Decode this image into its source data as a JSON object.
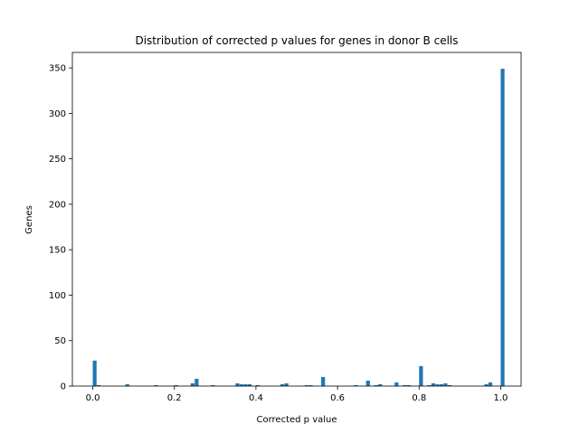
{
  "chart_data": {
    "type": "bar",
    "title": "Distribution of corrected p values for genes in donor B cells",
    "xlabel": "Corrected p value",
    "ylabel": "Genes",
    "xlim": [
      -0.05,
      1.05
    ],
    "ylim": [
      0,
      367
    ],
    "xticks": [
      0.0,
      0.2,
      0.4,
      0.6,
      0.8,
      1.0
    ],
    "xtick_labels": [
      "0.0",
      "0.2",
      "0.4",
      "0.6",
      "0.8",
      "1.0"
    ],
    "yticks": [
      0,
      50,
      100,
      150,
      200,
      250,
      300,
      350
    ],
    "ytick_labels": [
      "0",
      "50",
      "100",
      "150",
      "200",
      "250",
      "300",
      "350"
    ],
    "bar_color": "#1f77b4",
    "bin_width": 0.01,
    "bins": [
      {
        "x": 0.0,
        "value": 28
      },
      {
        "x": 0.01,
        "value": 1
      },
      {
        "x": 0.08,
        "value": 2
      },
      {
        "x": 0.15,
        "value": 1
      },
      {
        "x": 0.2,
        "value": 1
      },
      {
        "x": 0.24,
        "value": 3
      },
      {
        "x": 0.25,
        "value": 8
      },
      {
        "x": 0.29,
        "value": 1
      },
      {
        "x": 0.35,
        "value": 3
      },
      {
        "x": 0.36,
        "value": 2
      },
      {
        "x": 0.37,
        "value": 2
      },
      {
        "x": 0.38,
        "value": 2
      },
      {
        "x": 0.4,
        "value": 1
      },
      {
        "x": 0.46,
        "value": 2
      },
      {
        "x": 0.47,
        "value": 3
      },
      {
        "x": 0.52,
        "value": 1
      },
      {
        "x": 0.53,
        "value": 1
      },
      {
        "x": 0.56,
        "value": 10
      },
      {
        "x": 0.64,
        "value": 1
      },
      {
        "x": 0.67,
        "value": 6
      },
      {
        "x": 0.69,
        "value": 1
      },
      {
        "x": 0.7,
        "value": 2
      },
      {
        "x": 0.74,
        "value": 4
      },
      {
        "x": 0.76,
        "value": 1
      },
      {
        "x": 0.77,
        "value": 1
      },
      {
        "x": 0.8,
        "value": 22
      },
      {
        "x": 0.82,
        "value": 1
      },
      {
        "x": 0.83,
        "value": 3
      },
      {
        "x": 0.84,
        "value": 2
      },
      {
        "x": 0.85,
        "value": 2
      },
      {
        "x": 0.86,
        "value": 3
      },
      {
        "x": 0.87,
        "value": 1
      },
      {
        "x": 0.96,
        "value": 2
      },
      {
        "x": 0.97,
        "value": 4
      },
      {
        "x": 1.0,
        "value": 349
      }
    ]
  }
}
